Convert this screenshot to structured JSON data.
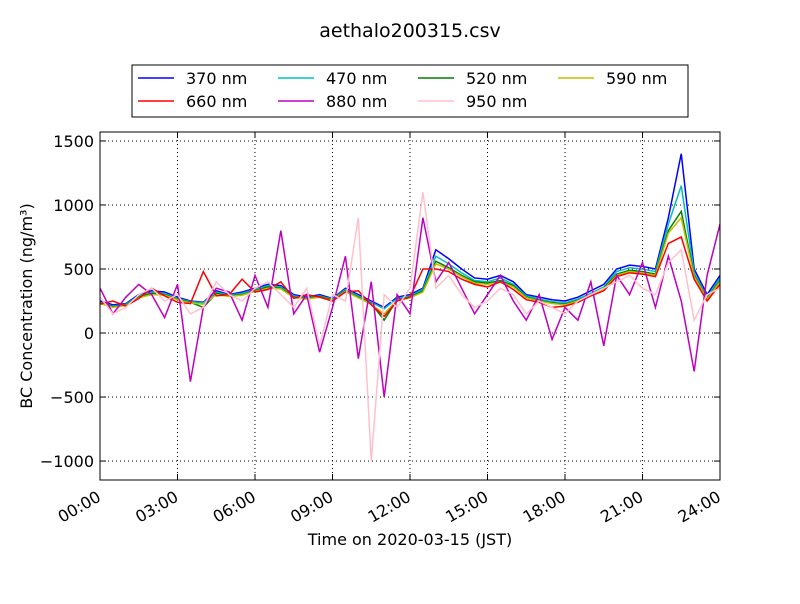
{
  "chart_data": {
    "type": "line",
    "title": "aethalo200315.csv",
    "xlabel": "Time on 2020-03-15 (JST)",
    "ylabel": "BC Concentration (ng/m³)",
    "grid": true,
    "legend": "top",
    "xlim": [
      0,
      24
    ],
    "xticks": [
      {
        "value": 0,
        "label": "00:00"
      },
      {
        "value": 3,
        "label": "03:00"
      },
      {
        "value": 6,
        "label": "06:00"
      },
      {
        "value": 9,
        "label": "09:00"
      },
      {
        "value": 12,
        "label": "12:00"
      },
      {
        "value": 15,
        "label": "15:00"
      },
      {
        "value": 18,
        "label": "18:00"
      },
      {
        "value": 21,
        "label": "21:00"
      },
      {
        "value": 24,
        "label": "24:00"
      }
    ],
    "ylim": [
      -1148,
      1570
    ],
    "yticks": [
      {
        "value": -1000,
        "label": "−1000"
      },
      {
        "value": -500,
        "label": "−500"
      },
      0,
      500,
      1000,
      1500
    ],
    "x": [
      0,
      0.5,
      1,
      1.5,
      2,
      2.5,
      3,
      3.5,
      4,
      4.5,
      5,
      5.5,
      6,
      6.5,
      7,
      7.5,
      8,
      8.5,
      9,
      9.5,
      10,
      10.5,
      11,
      11.5,
      12,
      12.5,
      13,
      13.5,
      14,
      14.5,
      15,
      15.5,
      16,
      16.5,
      17,
      17.5,
      18,
      18.5,
      19,
      19.5,
      20,
      20.5,
      21,
      21.5,
      22,
      22.5,
      23,
      23.5,
      24
    ],
    "series": [
      {
        "name": "370 nm",
        "color": "#0000ff",
        "values": [
          250,
          220,
          230,
          300,
          330,
          320,
          280,
          250,
          240,
          330,
          300,
          320,
          350,
          380,
          370,
          300,
          280,
          300,
          270,
          350,
          300,
          250,
          200,
          280,
          300,
          350,
          650,
          580,
          500,
          430,
          420,
          450,
          400,
          300,
          280,
          260,
          250,
          280,
          330,
          380,
          500,
          530,
          520,
          500,
          900,
          1400,
          500,
          300,
          450
        ]
      },
      {
        "name": "470 nm",
        "color": "#00bfbf",
        "values": [
          240,
          210,
          225,
          290,
          320,
          310,
          270,
          245,
          235,
          320,
          295,
          310,
          340,
          370,
          360,
          290,
          275,
          290,
          265,
          340,
          290,
          240,
          190,
          270,
          290,
          340,
          600,
          540,
          470,
          410,
          400,
          430,
          380,
          290,
          265,
          245,
          235,
          265,
          310,
          360,
          480,
          510,
          500,
          480,
          850,
          1150,
          470,
          280,
          430
        ]
      },
      {
        "name": "520 nm",
        "color": "#008000",
        "values": [
          235,
          205,
          220,
          280,
          310,
          300,
          265,
          240,
          200,
          310,
          290,
          300,
          330,
          360,
          350,
          280,
          270,
          285,
          260,
          330,
          280,
          230,
          100,
          260,
          280,
          330,
          560,
          510,
          450,
          400,
          390,
          410,
          370,
          280,
          255,
          235,
          225,
          255,
          300,
          350,
          460,
          490,
          480,
          460,
          800,
          950,
          450,
          270,
          410
        ]
      },
      {
        "name": "590 nm",
        "color": "#bfbf00",
        "values": [
          230,
          200,
          215,
          275,
          300,
          295,
          260,
          235,
          225,
          300,
          285,
          295,
          325,
          350,
          345,
          275,
          265,
          280,
          255,
          325,
          275,
          225,
          150,
          255,
          275,
          320,
          540,
          500,
          440,
          390,
          380,
          400,
          360,
          275,
          250,
          230,
          220,
          250,
          295,
          340,
          450,
          480,
          470,
          450,
          780,
          900,
          440,
          265,
          400
        ]
      },
      {
        "name": "660 nm",
        "color": "#ff0000",
        "values": [
          225,
          250,
          210,
          270,
          350,
          290,
          240,
          230,
          480,
          290,
          300,
          420,
          320,
          340,
          400,
          270,
          300,
          280,
          250,
          320,
          330,
          220,
          130,
          250,
          280,
          500,
          500,
          480,
          420,
          380,
          360,
          400,
          340,
          260,
          240,
          200,
          210,
          240,
          290,
          330,
          440,
          470,
          460,
          440,
          700,
          750,
          420,
          250,
          380
        ]
      },
      {
        "name": "880 nm",
        "color": "#bf00bf",
        "values": [
          350,
          150,
          280,
          380,
          300,
          120,
          380,
          -380,
          200,
          350,
          320,
          100,
          450,
          200,
          800,
          150,
          300,
          -150,
          200,
          600,
          -200,
          400,
          -500,
          300,
          150,
          900,
          400,
          550,
          350,
          150,
          300,
          450,
          250,
          100,
          300,
          -50,
          200,
          100,
          400,
          -100,
          450,
          300,
          550,
          200,
          600,
          250,
          -300,
          450,
          850
        ]
      },
      {
        "name": "950 nm",
        "color": "#ffc0cb",
        "values": [
          280,
          150,
          200,
          300,
          350,
          250,
          300,
          150,
          200,
          400,
          300,
          250,
          350,
          400,
          300,
          200,
          350,
          -100,
          300,
          250,
          900,
          -1000,
          300,
          200,
          350,
          1100,
          350,
          450,
          300,
          200,
          250,
          350,
          300,
          150,
          250,
          200,
          150,
          250,
          300,
          350,
          400,
          450,
          350,
          300,
          550,
          650,
          100,
          300,
          350
        ]
      }
    ]
  }
}
